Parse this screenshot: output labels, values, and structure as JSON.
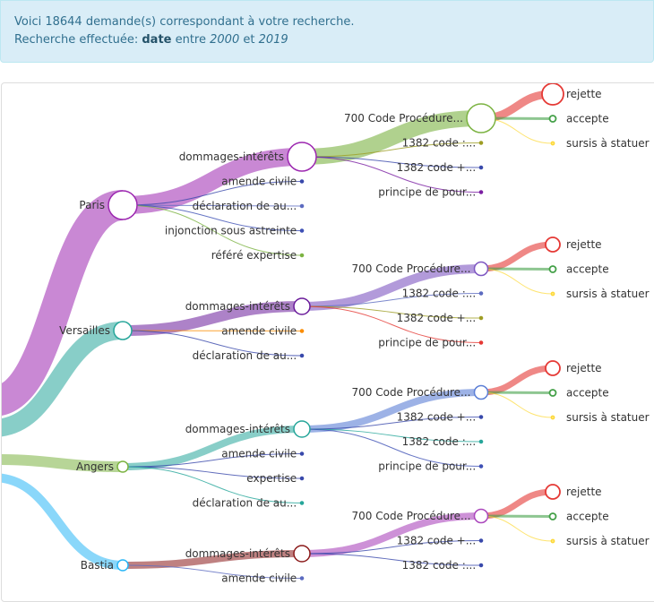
{
  "banner": {
    "line1": "Voici 18644 demande(s) correspondant à votre recherche.",
    "line2_prefix": "Recherche effectuée: ",
    "field": "date",
    "between": " entre ",
    "from": "2000",
    "and": " et ",
    "to": "2019"
  },
  "tree": {
    "root": {
      "color": "#b39ddb"
    },
    "cities": [
      {
        "label": "Paris",
        "color": "#9c27b0",
        "weight": 34,
        "branches": [
          {
            "label": "dommages-intérêts",
            "color": "#9c27b0",
            "weight": 20,
            "big": true,
            "children": [
              {
                "label": "700 Code Procédure...",
                "color": "#7cb342",
                "weight": 18,
                "big": true,
                "outcomes": [
                  {
                    "label": "rejette",
                    "color": "#e53935"
                  },
                  {
                    "label": "accepte",
                    "color": "#43a047"
                  },
                  {
                    "label": "sursis à statuer",
                    "color": "#fdd835"
                  }
                ]
              },
              {
                "label": "1382 code :...",
                "color": "#9e9d24"
              },
              {
                "label": "1382 code +...",
                "color": "#3949ab"
              },
              {
                "label": "principe de pour...",
                "color": "#7b1fa2"
              }
            ]
          },
          {
            "label": "amende civile",
            "color": "#3949ab"
          },
          {
            "label": "déclaration de au...",
            "color": "#5c6bc0"
          },
          {
            "label": "injonction sous astreinte",
            "color": "#3f51b5"
          },
          {
            "label": "référé expertise",
            "color": "#7cb342"
          }
        ]
      },
      {
        "label": "Versailles",
        "color": "#26a69a",
        "weight": 20,
        "branches": [
          {
            "label": "dommages-intérêts",
            "color": "#6a1b9a",
            "weight": 12,
            "children": [
              {
                "label": "700 Code Procédure...",
                "color": "#7e57c2",
                "weight": 10,
                "outcomes": [
                  {
                    "label": "rejette",
                    "color": "#e53935"
                  },
                  {
                    "label": "accepte",
                    "color": "#43a047"
                  },
                  {
                    "label": "sursis à statuer",
                    "color": "#fdd835"
                  }
                ]
              },
              {
                "label": "1382 code :...",
                "color": "#5c6bc0"
              },
              {
                "label": "1382 code +...",
                "color": "#9e9d24"
              },
              {
                "label": "principe de pour...",
                "color": "#e53935"
              }
            ]
          },
          {
            "label": "amende civile",
            "color": "#fb8c00"
          },
          {
            "label": "déclaration de au...",
            "color": "#3949ab"
          }
        ]
      },
      {
        "label": "Angers",
        "color": "#7cb342",
        "weight": 12,
        "branches": [
          {
            "label": "dommages-intérêts",
            "color": "#26a69a",
            "weight": 8,
            "children": [
              {
                "label": "700 Code Procédure...",
                "color": "#5c7fd6",
                "weight": 8,
                "outcomes": [
                  {
                    "label": "rejette",
                    "color": "#e53935"
                  },
                  {
                    "label": "accepte",
                    "color": "#43a047"
                  },
                  {
                    "label": "sursis à statuer",
                    "color": "#fdd835"
                  }
                ]
              },
              {
                "label": "1382 code +...",
                "color": "#3949ab"
              },
              {
                "label": "1382 code :...",
                "color": "#26a69a"
              },
              {
                "label": "principe de pour...",
                "color": "#3f51b5"
              }
            ]
          },
          {
            "label": "amende civile",
            "color": "#3949ab"
          },
          {
            "label": "expertise",
            "color": "#3949ab"
          },
          {
            "label": "déclaration de au...",
            "color": "#26a69a"
          }
        ]
      },
      {
        "label": "Bastia",
        "color": "#29b6f6",
        "weight": 10,
        "branches": [
          {
            "label": "dommages-intérêts",
            "color": "#8b1a1a",
            "weight": 8,
            "children": [
              {
                "label": "700 Code Procédure...",
                "color": "#ab47bc",
                "weight": 8,
                "outcomes": [
                  {
                    "label": "rejette",
                    "color": "#e53935"
                  },
                  {
                    "label": "accepte",
                    "color": "#43a047"
                  },
                  {
                    "label": "sursis à statuer",
                    "color": "#fdd835"
                  }
                ]
              },
              {
                "label": "1382 code +...",
                "color": "#3949ab"
              },
              {
                "label": "1382 code :...",
                "color": "#3949ab"
              }
            ]
          },
          {
            "label": "amende civile",
            "color": "#5c6bc0"
          }
        ]
      }
    ]
  }
}
